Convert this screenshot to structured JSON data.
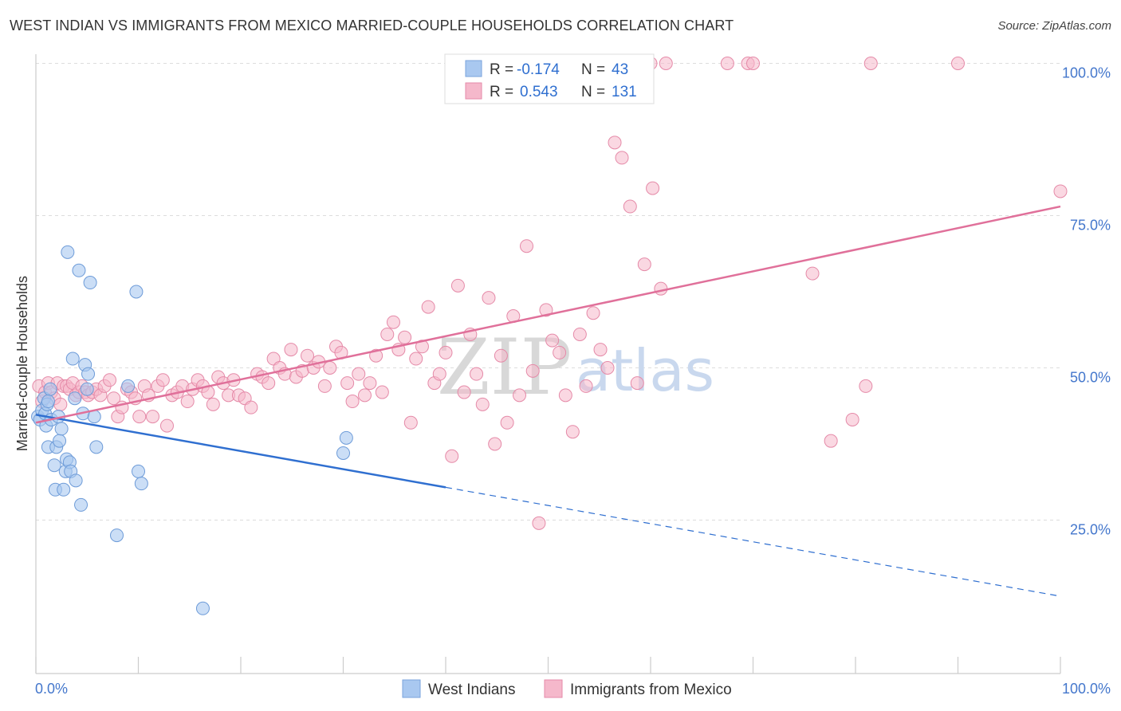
{
  "title": "WEST INDIAN VS IMMIGRANTS FROM MEXICO MARRIED-COUPLE HOUSEHOLDS CORRELATION CHART",
  "source": "Source: ZipAtlas.com",
  "watermark": {
    "zip": "ZIP",
    "atlas": "atlas"
  },
  "legend": {
    "rows": [
      {
        "r_label": "R =",
        "r_value": "-0.174",
        "n_label": "N =",
        "n_value": "43",
        "color": "#a9c8f0"
      },
      {
        "r_label": "R =",
        "r_value": "0.543",
        "n_label": "N =",
        "n_value": "131",
        "color": "#f5b8cb"
      }
    ]
  },
  "bottom_legend": [
    "West Indians",
    "Immigrants from Mexico"
  ],
  "chart_data": {
    "type": "scatter",
    "title": "WEST INDIAN VS IMMIGRANTS FROM MEXICO MARRIED-COUPLE HOUSEHOLDS CORRELATION CHART",
    "xlabel": "",
    "ylabel": "Married-couple Households",
    "xlim": [
      0,
      100
    ],
    "ylim": [
      0,
      105
    ],
    "x_ticks": [
      "0.0%",
      "100.0%"
    ],
    "y_ticks": [
      {
        "value": 25,
        "label": "25.0%"
      },
      {
        "value": 50,
        "label": "50.0%"
      },
      {
        "value": 75,
        "label": "75.0%"
      },
      {
        "value": 100,
        "label": "100.0%"
      }
    ],
    "grid": true,
    "legend_position": "top-center",
    "colors": {
      "west_indians": "#a9c8f0",
      "west_indians_line": "#2f6fd0",
      "mexico": "#f5b8cb",
      "mexico_line": "#e0709a"
    },
    "series": [
      {
        "name": "West Indians",
        "r": -0.174,
        "n": 43,
        "trend": {
          "x0": 0,
          "y0": 42.3,
          "x1": 100,
          "y1": 12.5,
          "solid_until_x": 40
        },
        "points": [
          [
            0.2,
            42.0
          ],
          [
            0.4,
            41.5
          ],
          [
            0.6,
            43.0
          ],
          [
            0.8,
            45.0
          ],
          [
            0.9,
            42.5
          ],
          [
            1.0,
            40.5
          ],
          [
            1.1,
            44.0
          ],
          [
            1.2,
            37.0
          ],
          [
            1.4,
            46.5
          ],
          [
            1.5,
            41.5
          ],
          [
            1.8,
            34.0
          ],
          [
            1.9,
            30.0
          ],
          [
            2.0,
            37.0
          ],
          [
            2.2,
            42.0
          ],
          [
            2.3,
            38.0
          ],
          [
            2.5,
            40.0
          ],
          [
            2.7,
            30.0
          ],
          [
            2.9,
            33.0
          ],
          [
            3.0,
            35.0
          ],
          [
            3.1,
            69.0
          ],
          [
            3.3,
            34.5
          ],
          [
            3.4,
            33.0
          ],
          [
            3.6,
            51.5
          ],
          [
            3.8,
            45.0
          ],
          [
            3.9,
            31.5
          ],
          [
            4.2,
            66.0
          ],
          [
            4.4,
            27.5
          ],
          [
            4.6,
            42.5
          ],
          [
            4.8,
            50.5
          ],
          [
            5.0,
            46.5
          ],
          [
            5.1,
            49.0
          ],
          [
            5.3,
            64.0
          ],
          [
            5.7,
            42.0
          ],
          [
            5.9,
            37.0
          ],
          [
            7.9,
            22.5
          ],
          [
            9.0,
            47.0
          ],
          [
            9.8,
            62.5
          ],
          [
            10.0,
            33.0
          ],
          [
            10.3,
            31.0
          ],
          [
            16.3,
            10.5
          ],
          [
            30.0,
            36.0
          ],
          [
            30.3,
            38.5
          ],
          [
            1.2,
            44.5
          ]
        ]
      },
      {
        "name": "Immigrants from Mexico",
        "r": 0.543,
        "n": 131,
        "trend": {
          "x0": 0,
          "y0": 41.0,
          "x1": 100,
          "y1": 76.5,
          "solid_until_x": 100
        },
        "points": [
          [
            0.3,
            47.0
          ],
          [
            0.6,
            44.5
          ],
          [
            0.9,
            46.0
          ],
          [
            1.2,
            47.5
          ],
          [
            1.5,
            46.0
          ],
          [
            1.8,
            45.0
          ],
          [
            2.1,
            47.5
          ],
          [
            2.4,
            44.0
          ],
          [
            2.7,
            47.0
          ],
          [
            3.0,
            47.0
          ],
          [
            3.3,
            46.5
          ],
          [
            3.6,
            47.5
          ],
          [
            3.9,
            45.5
          ],
          [
            4.2,
            46.0
          ],
          [
            4.5,
            47.0
          ],
          [
            4.8,
            46.0
          ],
          [
            5.1,
            45.5
          ],
          [
            5.5,
            46.0
          ],
          [
            5.9,
            46.5
          ],
          [
            6.3,
            45.5
          ],
          [
            6.7,
            47.0
          ],
          [
            7.2,
            48.0
          ],
          [
            7.6,
            45.0
          ],
          [
            8.0,
            42.0
          ],
          [
            8.4,
            43.5
          ],
          [
            8.9,
            46.5
          ],
          [
            9.3,
            46.0
          ],
          [
            9.7,
            45.0
          ],
          [
            10.1,
            42.0
          ],
          [
            10.6,
            47.0
          ],
          [
            11.0,
            45.5
          ],
          [
            11.4,
            42.0
          ],
          [
            11.9,
            47.0
          ],
          [
            12.4,
            48.0
          ],
          [
            12.8,
            40.5
          ],
          [
            13.3,
            45.5
          ],
          [
            13.8,
            46.0
          ],
          [
            14.3,
            47.0
          ],
          [
            14.8,
            44.5
          ],
          [
            15.3,
            46.5
          ],
          [
            15.8,
            48.0
          ],
          [
            16.3,
            47.0
          ],
          [
            16.8,
            46.0
          ],
          [
            17.3,
            44.0
          ],
          [
            17.8,
            48.5
          ],
          [
            18.3,
            47.5
          ],
          [
            18.8,
            45.5
          ],
          [
            19.3,
            48.0
          ],
          [
            19.8,
            45.5
          ],
          [
            20.4,
            45.0
          ],
          [
            21.0,
            43.5
          ],
          [
            21.6,
            49.0
          ],
          [
            22.1,
            48.5
          ],
          [
            22.7,
            47.5
          ],
          [
            23.2,
            51.5
          ],
          [
            23.8,
            50.0
          ],
          [
            24.3,
            49.0
          ],
          [
            24.9,
            53.0
          ],
          [
            25.4,
            48.5
          ],
          [
            26.0,
            49.5
          ],
          [
            26.5,
            52.0
          ],
          [
            27.1,
            50.0
          ],
          [
            27.6,
            51.0
          ],
          [
            28.2,
            47.0
          ],
          [
            28.7,
            50.0
          ],
          [
            29.3,
            53.5
          ],
          [
            29.8,
            52.5
          ],
          [
            30.4,
            47.5
          ],
          [
            30.9,
            44.5
          ],
          [
            31.5,
            49.0
          ],
          [
            32.1,
            45.5
          ],
          [
            32.6,
            47.5
          ],
          [
            33.2,
            52.0
          ],
          [
            33.8,
            46.0
          ],
          [
            34.3,
            55.5
          ],
          [
            34.9,
            57.5
          ],
          [
            35.4,
            53.0
          ],
          [
            36.0,
            55.0
          ],
          [
            36.6,
            41.0
          ],
          [
            37.1,
            51.5
          ],
          [
            37.7,
            53.5
          ],
          [
            38.3,
            60.0
          ],
          [
            38.9,
            47.5
          ],
          [
            39.4,
            49.0
          ],
          [
            40.0,
            52.5
          ],
          [
            40.6,
            35.5
          ],
          [
            41.2,
            63.5
          ],
          [
            41.8,
            46.0
          ],
          [
            42.4,
            55.5
          ],
          [
            43.0,
            49.0
          ],
          [
            43.6,
            44.0
          ],
          [
            44.2,
            61.5
          ],
          [
            44.8,
            37.5
          ],
          [
            45.4,
            52.0
          ],
          [
            46.0,
            41.0
          ],
          [
            46.6,
            58.5
          ],
          [
            47.2,
            45.5
          ],
          [
            47.9,
            70.0
          ],
          [
            48.5,
            49.5
          ],
          [
            49.1,
            24.5
          ],
          [
            49.8,
            59.5
          ],
          [
            50.4,
            54.5
          ],
          [
            51.1,
            52.5
          ],
          [
            51.7,
            45.5
          ],
          [
            52.4,
            39.5
          ],
          [
            53.1,
            55.5
          ],
          [
            53.7,
            47.0
          ],
          [
            54.4,
            59.0
          ],
          [
            55.1,
            53.0
          ],
          [
            55.8,
            50.0
          ],
          [
            56.5,
            87.0
          ],
          [
            57.2,
            84.5
          ],
          [
            58.0,
            76.5
          ],
          [
            58.7,
            47.5
          ],
          [
            59.4,
            67.0
          ],
          [
            60.2,
            79.5
          ],
          [
            61.0,
            63.0
          ],
          [
            53.0,
            100.0
          ],
          [
            54.0,
            100.0
          ],
          [
            60.0,
            100.0
          ],
          [
            61.5,
            100.0
          ],
          [
            67.5,
            100.0
          ],
          [
            69.5,
            100.0
          ],
          [
            70.0,
            100.0
          ],
          [
            75.8,
            65.5
          ],
          [
            77.6,
            38.0
          ],
          [
            79.7,
            41.5
          ],
          [
            81.0,
            47.0
          ],
          [
            81.5,
            100.0
          ],
          [
            90.0,
            100.0
          ],
          [
            100.0,
            79.0
          ]
        ]
      }
    ]
  }
}
